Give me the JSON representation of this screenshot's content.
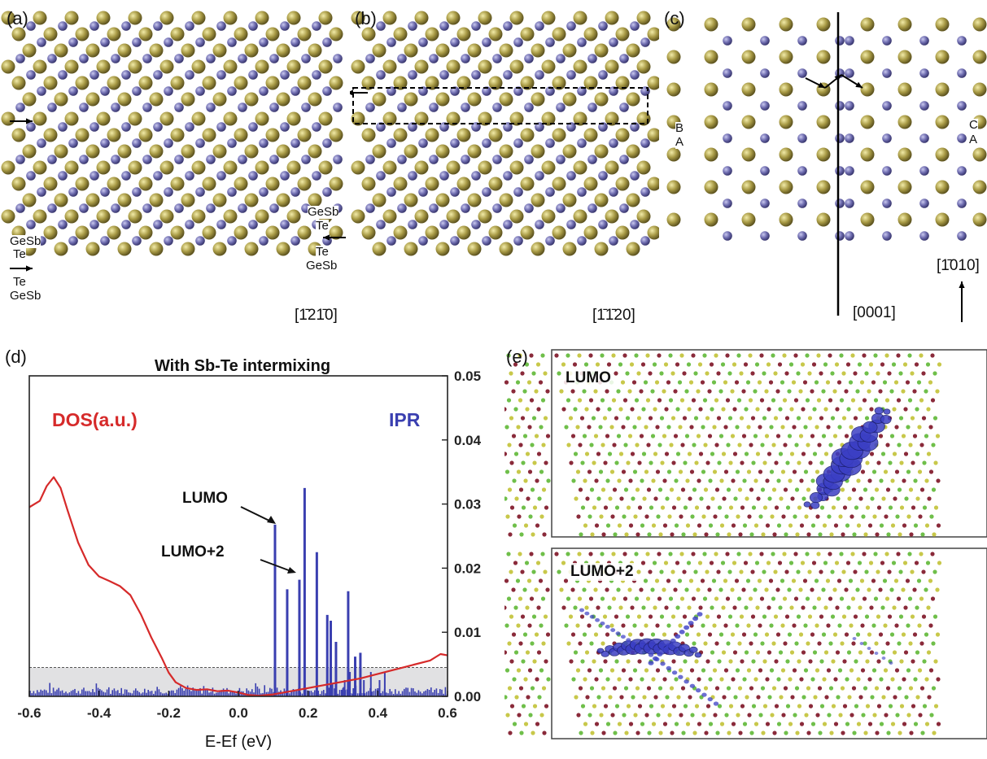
{
  "panel_a": {
    "label": "(a)",
    "labels_left": [
      "GeSb",
      "Te",
      "Te",
      "GeSb"
    ],
    "labels_right": [
      "GeSb",
      "Te",
      "Te",
      "GeSb"
    ],
    "direction": "[1̄21̄0]"
  },
  "panel_b": {
    "label": "(b)",
    "direction": "[1̄1̄20]"
  },
  "panel_c": {
    "label": "(c)",
    "stack_left": [
      "B",
      "A"
    ],
    "stack_right": [
      "C",
      "A"
    ],
    "direction_left": "[0001]",
    "direction_right": "[1̄010]"
  },
  "panel_d": {
    "label": "(d)",
    "title": "With Sb-Te intermixing",
    "dos_label": "DOS(a.u.)",
    "ipr_label": "IPR",
    "xlabel": "E-Ef (eV)",
    "annotations": [
      "LUMO",
      "LUMO+2"
    ],
    "colors": {
      "dos": "#d62a2a",
      "ipr": "#3a3fb0",
      "shade": "#e1e1e3"
    }
  },
  "panel_e": {
    "label": "(e)",
    "top_label": "LUMO",
    "bottom_label": "LUMO+2"
  },
  "chart_data": {
    "type": "line",
    "title": "With Sb-Te intermixing",
    "xlabel": "E-Ef (eV)",
    "xlim": [
      -0.6,
      0.6
    ],
    "x_ticks": [
      "-0.6",
      "-0.4",
      "-0.2",
      "0.0",
      "0.2",
      "0.4",
      "0.6"
    ],
    "y_right_ticks": [
      "0.00",
      "0.01",
      "0.02",
      "0.03",
      "0.04",
      "0.05"
    ],
    "y_right_lim": [
      0,
      0.05
    ],
    "series": [
      {
        "name": "DOS(a.u.)",
        "x": [
          -0.6,
          -0.57,
          -0.55,
          -0.53,
          -0.51,
          -0.49,
          -0.46,
          -0.43,
          -0.4,
          -0.37,
          -0.34,
          -0.31,
          -0.28,
          -0.25,
          -0.22,
          -0.2,
          -0.18,
          -0.15,
          -0.12,
          -0.09,
          -0.06,
          -0.03,
          0.0,
          0.03,
          0.06,
          0.1,
          0.15,
          0.2,
          0.25,
          0.3,
          0.35,
          0.4,
          0.45,
          0.5,
          0.55,
          0.58,
          0.6
        ],
        "y": [
          0.0295,
          0.0305,
          0.0328,
          0.0342,
          0.0325,
          0.029,
          0.024,
          0.0205,
          0.0187,
          0.018,
          0.0172,
          0.0158,
          0.0128,
          0.0092,
          0.006,
          0.0037,
          0.0022,
          0.0013,
          0.001,
          0.0011,
          0.0008,
          0.0009,
          0.0006,
          0.0002,
          0.0001,
          0.0003,
          0.0008,
          0.0013,
          0.0018,
          0.0023,
          0.0028,
          0.0035,
          0.0042,
          0.0049,
          0.0056,
          0.0066,
          0.0064
        ]
      },
      {
        "name": "IPR",
        "x": [
          0.105,
          0.14,
          0.175,
          0.19,
          0.225,
          0.255,
          0.265,
          0.28,
          0.315,
          0.335,
          0.35
        ],
        "y": [
          0.0268,
          0.0167,
          0.0182,
          0.0325,
          0.0225,
          0.0127,
          0.0118,
          0.0085,
          0.0164,
          0.0062,
          0.0068
        ]
      }
    ],
    "threshold": 0.0045
  }
}
